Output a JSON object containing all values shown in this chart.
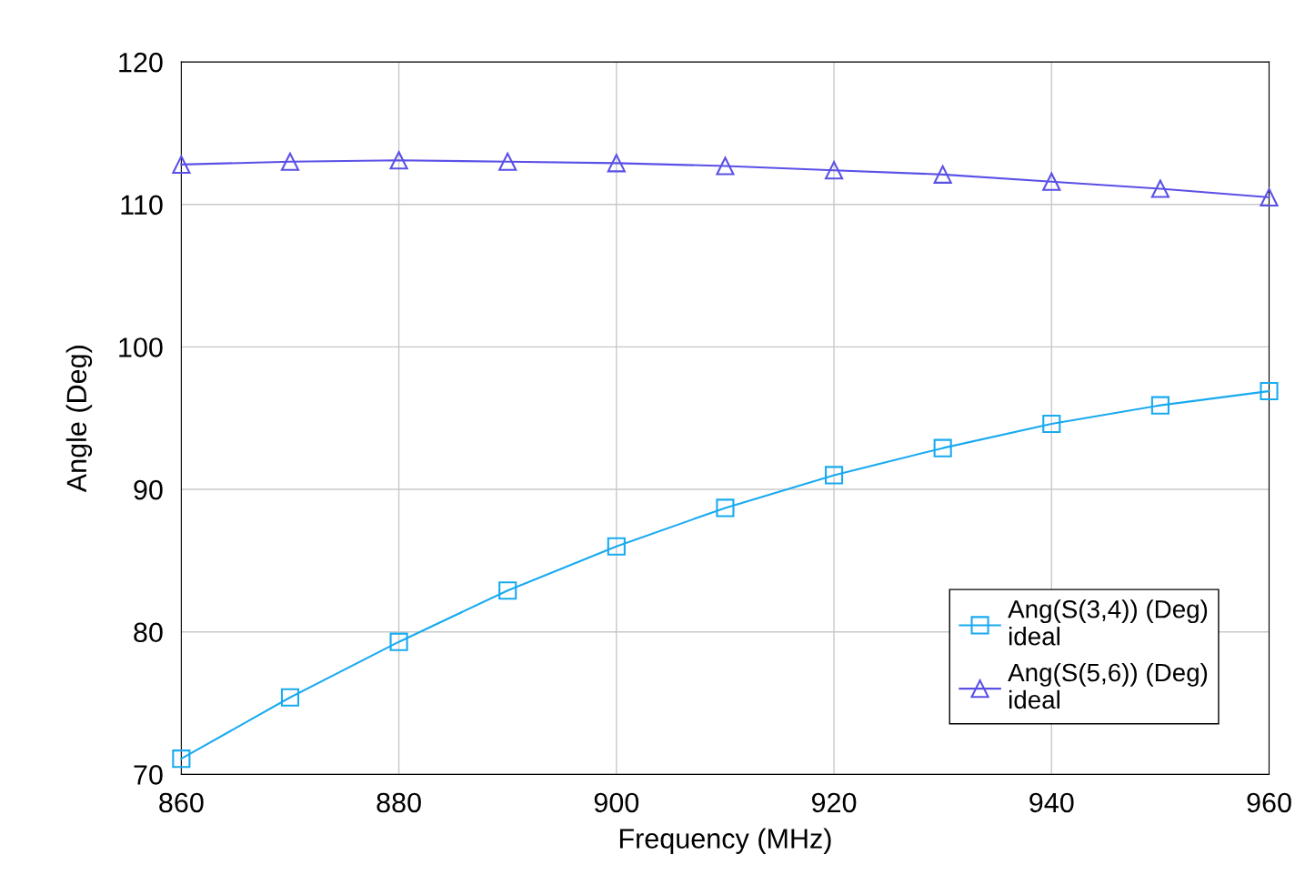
{
  "chart_data": {
    "type": "line",
    "xlabel": "Frequency (MHz)",
    "ylabel": "Angle (Deg)",
    "x": [
      860,
      870,
      880,
      890,
      900,
      910,
      920,
      930,
      940,
      950,
      960
    ],
    "series": [
      {
        "name": "Ang(S(3,4)) (Deg)\nideal",
        "color": "#19aaf0",
        "marker": "square",
        "values": [
          71.1,
          75.4,
          79.3,
          82.9,
          86.0,
          88.7,
          91.0,
          92.9,
          94.6,
          95.9,
          96.9
        ]
      },
      {
        "name": "Ang(S(5,6)) (Deg)\nideal",
        "color": "#5a50e6",
        "marker": "triangle",
        "values": [
          112.8,
          113.0,
          113.1,
          113.0,
          112.9,
          112.7,
          112.4,
          112.1,
          111.6,
          111.1,
          110.5
        ]
      }
    ],
    "xlim": [
      860,
      960
    ],
    "xticks": [
      860,
      880,
      900,
      920,
      940,
      960
    ],
    "ylim": [
      70,
      120
    ],
    "yticks": [
      70,
      80,
      90,
      100,
      110,
      120
    ],
    "grid": true,
    "legend": "bottom right",
    "line_style": "solid"
  }
}
